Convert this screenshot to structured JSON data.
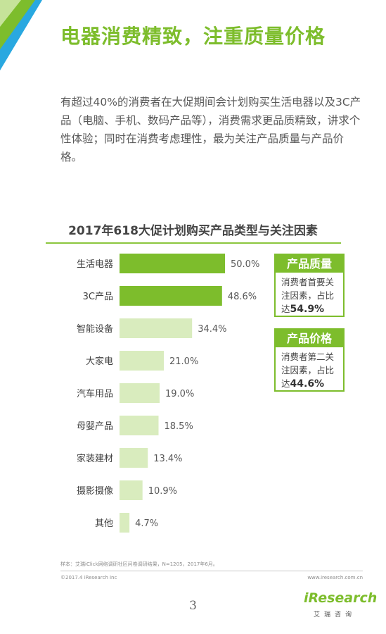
{
  "heading": "电器消费精致，注重质量价格",
  "intro": "有超过40%的消费者在大促期间会计划购买生活电器以及3C产品（电脑、手机、数码产品等），消费需求更品质精致，讲求个性体验；同时在消费考虑理性，最为关注产品质量与产品价格。",
  "chart_data": {
    "type": "bar",
    "orientation": "horizontal",
    "title": "2017年618大促计划购买产品类型与关注因素",
    "categories": [
      "生活电器",
      "3C产品",
      "智能设备",
      "大家电",
      "汽车用品",
      "母婴产品",
      "家装建材",
      "摄影摄像",
      "其他"
    ],
    "values": [
      50.0,
      48.6,
      34.4,
      21.0,
      19.0,
      18.5,
      13.4,
      10.9,
      4.7
    ],
    "value_labels": [
      "50.0%",
      "48.6%",
      "34.4%",
      "21.0%",
      "19.0%",
      "18.5%",
      "13.4%",
      "10.9%",
      "4.7%"
    ],
    "unit": "%",
    "colors": [
      "#7dbd2c",
      "#7dbd2c",
      "#d9ecbe",
      "#d9ecbe",
      "#d9ecbe",
      "#d9ecbe",
      "#d9ecbe",
      "#d9ecbe",
      "#d9ecbe"
    ],
    "grid": false,
    "legend": "none"
  },
  "callouts": [
    {
      "title": "产品质量",
      "text": "消费者首要关注因素，占比达",
      "value": "54.9%"
    },
    {
      "title": "产品价格",
      "text": "消费者第二关注因素，占比达",
      "value": "44.6%"
    }
  ],
  "footer": {
    "note": "样本：艾瑞iClick网络调研社区问卷调研结果，N=1205，2017年6月。",
    "copyright": "©2017.4 iResearch Inc",
    "url": "www.iresearch.com.cn",
    "page": "3",
    "logo_text": "iResearch",
    "logo_cn": "艾瑞咨询"
  },
  "colors": {
    "accent": "#7dbd2c",
    "bar_light": "#d9ecbe",
    "corner_blue": "#29a8e0"
  }
}
